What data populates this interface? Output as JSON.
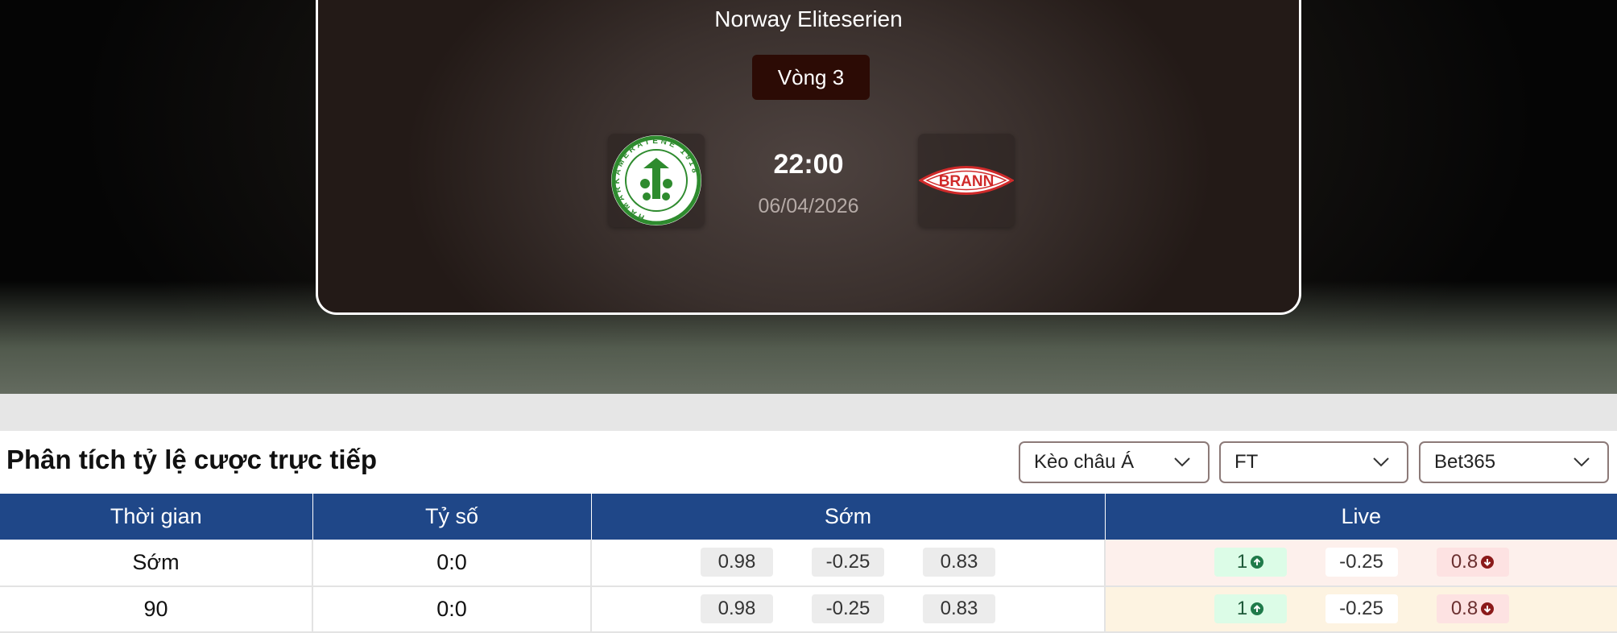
{
  "match": {
    "league": "Norway Eliteserien",
    "round": "Vòng 3",
    "time": "22:00",
    "date": "06/04/2026",
    "home_logo_text": "HAMARKAMERATENE 1918",
    "away_logo_text": "BRANN"
  },
  "section": {
    "title": "Phân tích tỷ lệ cược trực tiếp"
  },
  "filters": [
    {
      "value": "Kèo châu Á"
    },
    {
      "value": "FT"
    },
    {
      "value": "Bet365"
    }
  ],
  "table": {
    "headers": [
      "Thời gian",
      "Tỷ số",
      "Sớm",
      "Live"
    ],
    "rows": [
      {
        "time": "Sớm",
        "score": "0:0",
        "early": [
          "0.98",
          "-0.25",
          "0.83"
        ],
        "live": [
          "1",
          "-0.25",
          "0.8"
        ]
      },
      {
        "time": "90",
        "score": "0:0",
        "early": [
          "0.98",
          "-0.25",
          "0.83"
        ],
        "live": [
          "1",
          "-0.25",
          "0.8"
        ]
      }
    ]
  },
  "colors": {
    "header": "#1f4788",
    "up": "#1f7a4a",
    "down": "#8b1a1a"
  }
}
